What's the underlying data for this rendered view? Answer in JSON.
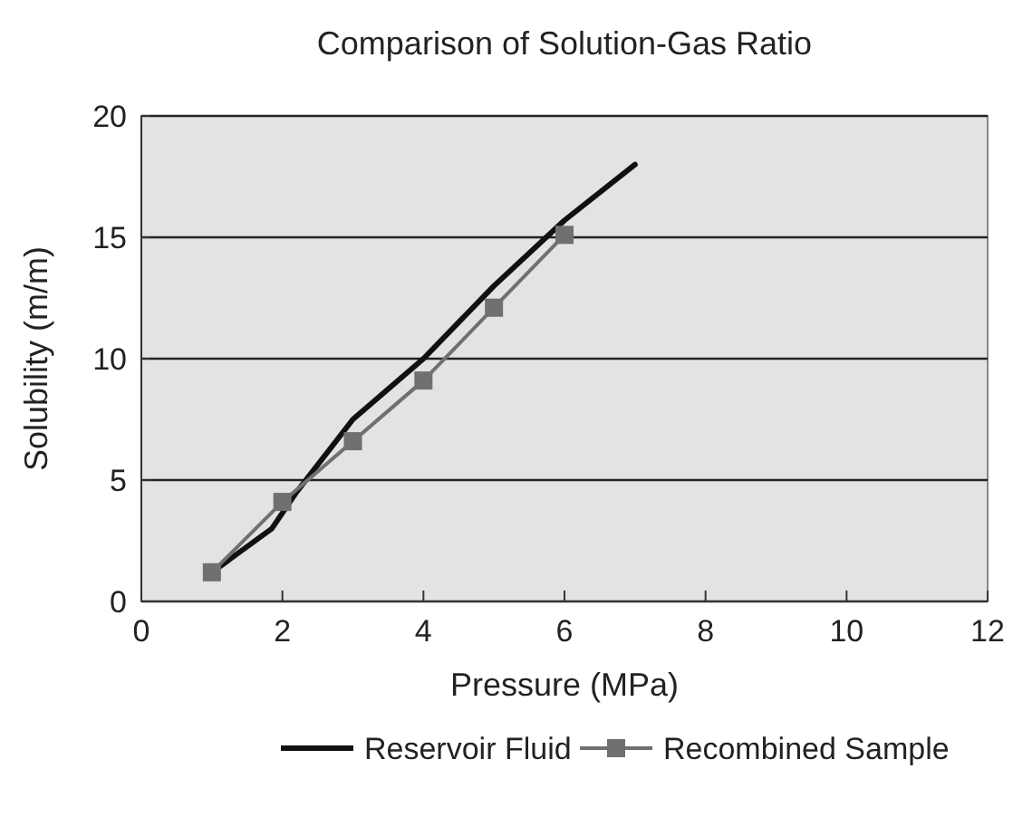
{
  "chart_data": {
    "type": "line",
    "title": "Comparison of Solution-Gas Ratio",
    "xlabel": "Pressure (MPa)",
    "ylabel": "Solubility (m/m)",
    "xlim": [
      0,
      12
    ],
    "xticks": [
      0,
      2,
      4,
      6,
      8,
      10,
      12
    ],
    "ylim": [
      0,
      20
    ],
    "yticks": [
      0,
      5,
      10,
      15,
      20
    ],
    "grid": "y",
    "legend": "bottom",
    "series": [
      {
        "name": "Reservoir Fluid",
        "color": "#111111",
        "marker": "none",
        "x": [
          1,
          1.85,
          2.2,
          3,
          4,
          5,
          6,
          7
        ],
        "values": [
          1.2,
          3,
          4.5,
          7.5,
          10,
          13,
          15.7,
          18
        ]
      },
      {
        "name": "Recombined Sample",
        "color": "#707070",
        "marker": "square",
        "x": [
          1,
          2,
          3,
          4,
          5,
          6
        ],
        "values": [
          1.2,
          4.1,
          6.6,
          9.1,
          12.1,
          15.1
        ]
      }
    ]
  }
}
